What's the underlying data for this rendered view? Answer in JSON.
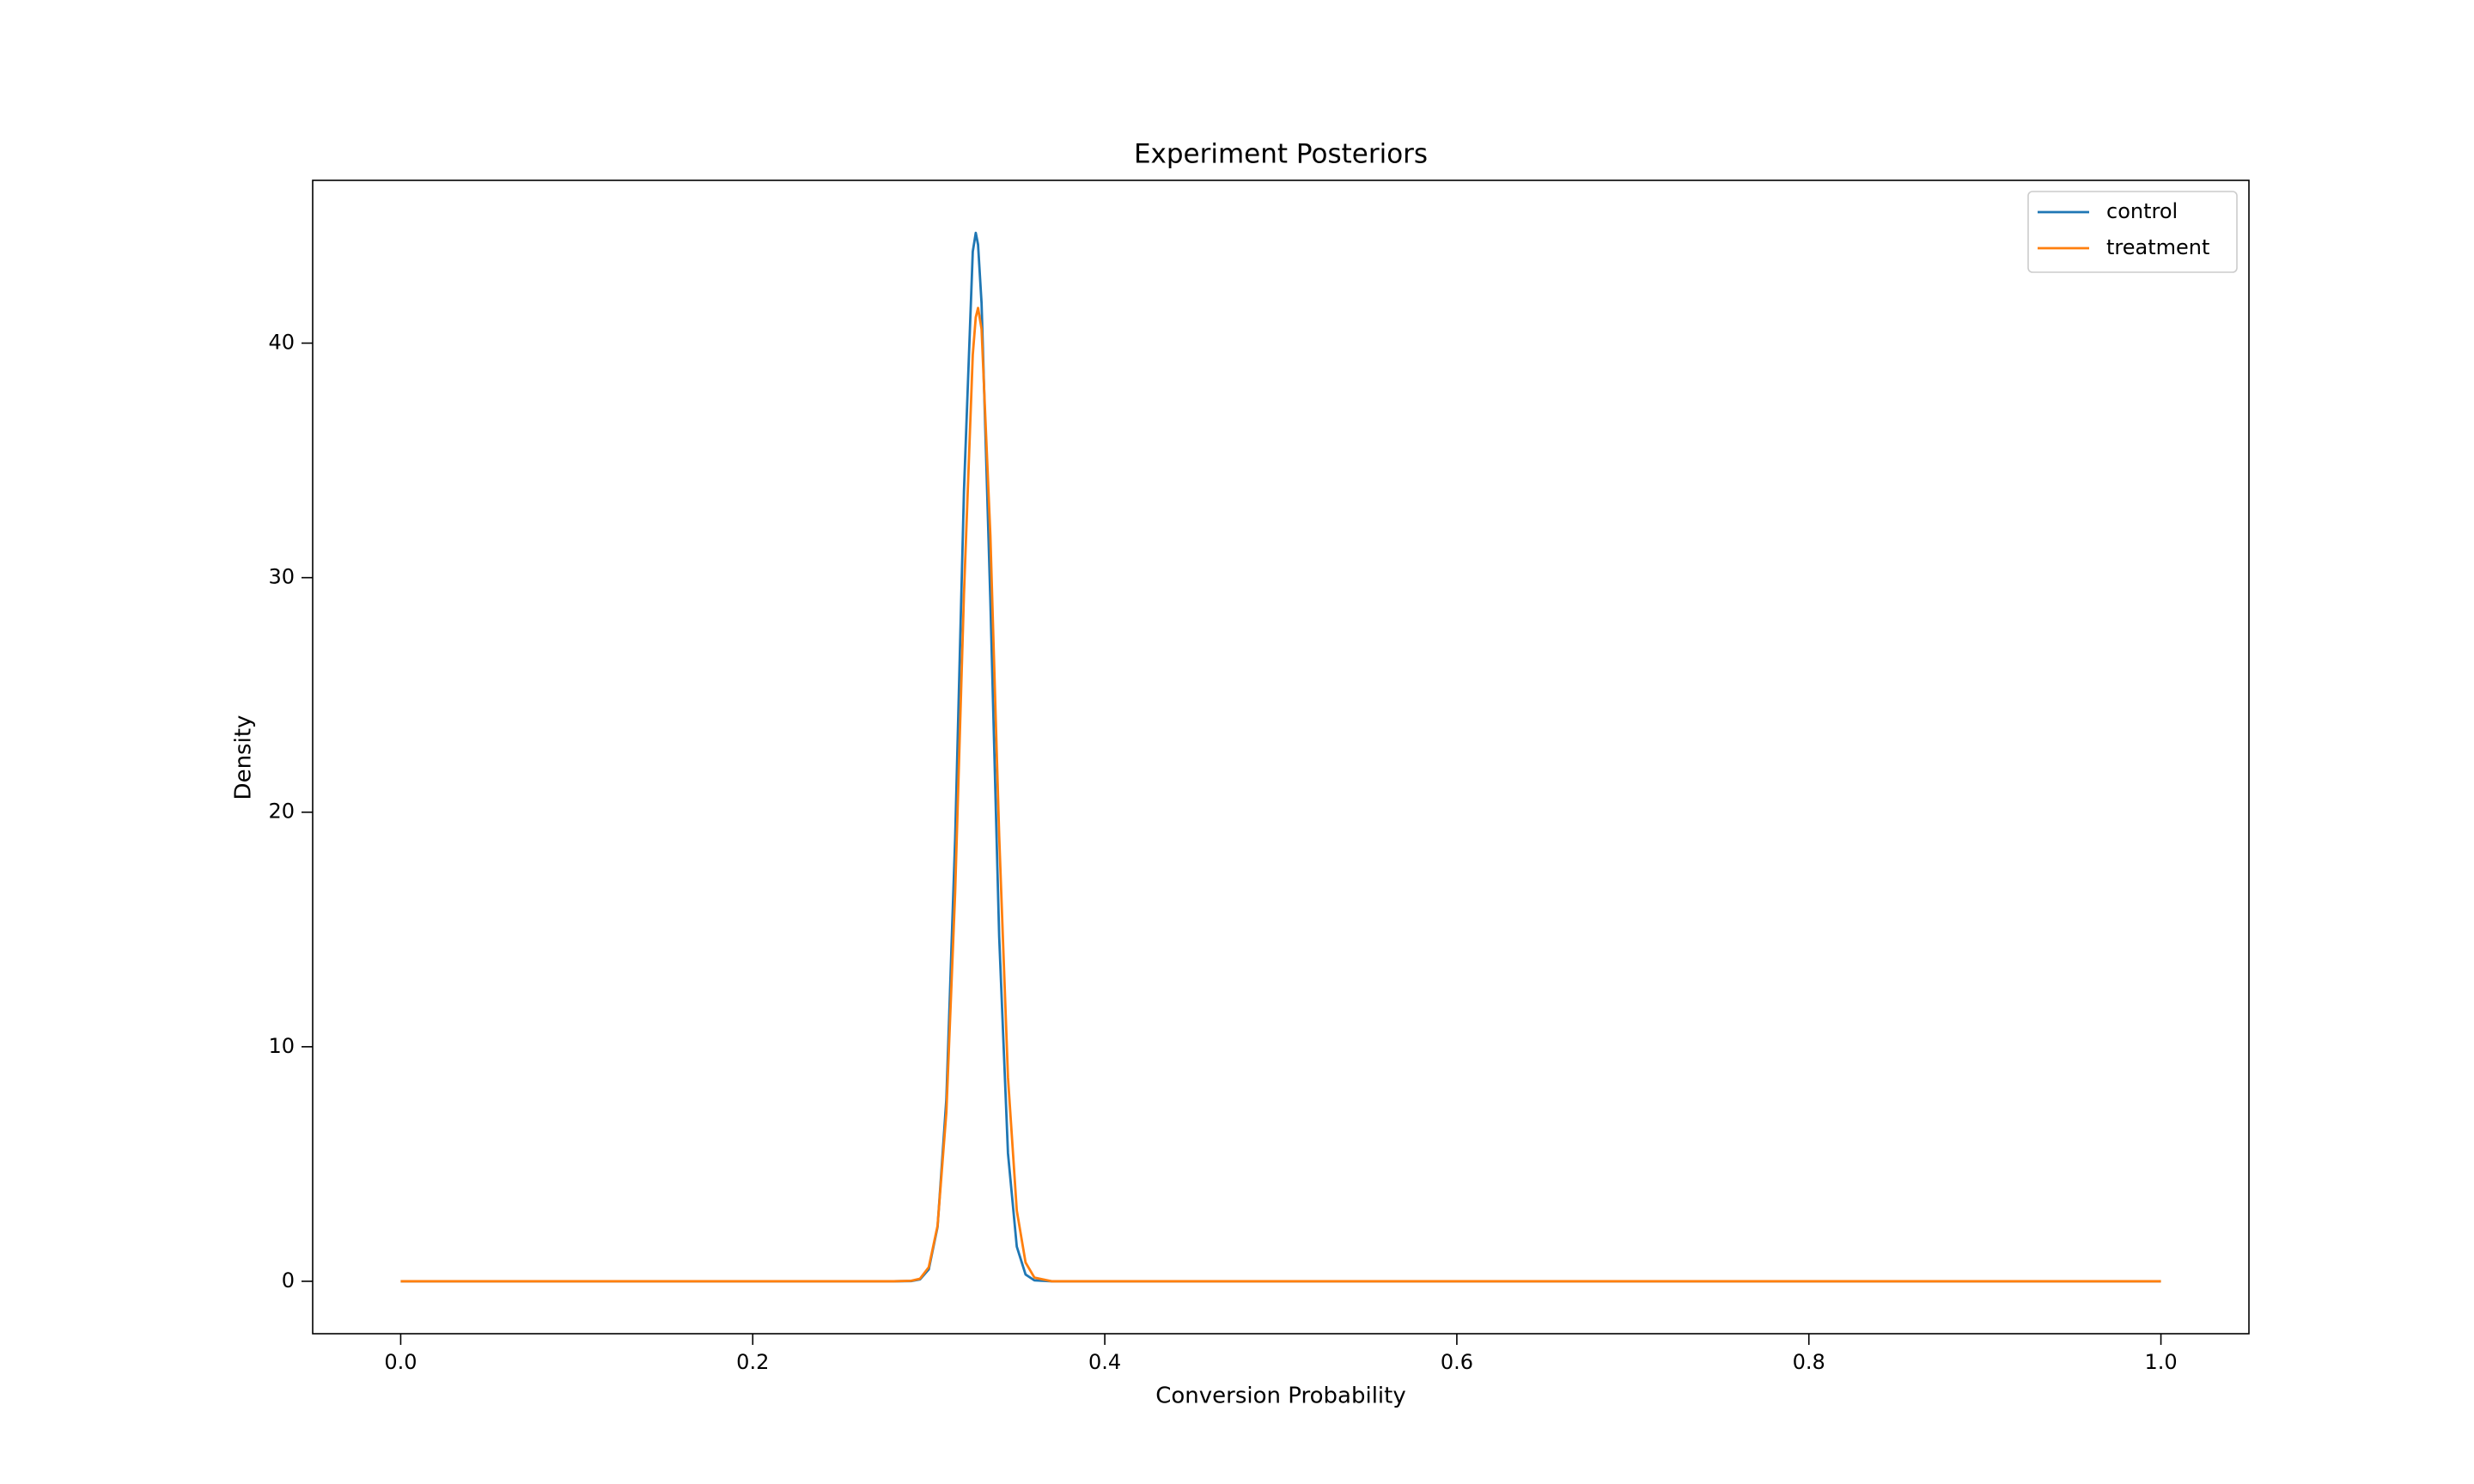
{
  "chart_data": {
    "type": "line",
    "title": "Experiment Posteriors",
    "x_label": "Conversion Probability",
    "y_label": "Density",
    "x": [
      0,
      0.1,
      0.2,
      0.28,
      0.29,
      0.295,
      0.3,
      0.305,
      0.31,
      0.315,
      0.32,
      0.325,
      0.3267,
      0.328,
      0.33,
      0.335,
      0.34,
      0.345,
      0.35,
      0.355,
      0.36,
      0.37,
      0.4,
      0.6,
      0.8,
      1.0
    ],
    "series": [
      {
        "name": "control",
        "color": "#1f77b4",
        "values": [
          0,
          0,
          0,
          0,
          0.01,
          0.08,
          0.51,
          2.32,
          7.77,
          18.9,
          33.7,
          43.9,
          44.7,
          44.2,
          41.7,
          29.0,
          14.7,
          5.46,
          1.48,
          0.29,
          0.04,
          0,
          0,
          0,
          0,
          0
        ]
      },
      {
        "name": "treatment",
        "color": "#ff7f0e",
        "values": [
          0,
          0,
          0,
          0,
          0.02,
          0.11,
          0.6,
          2.37,
          7.2,
          16.6,
          29.3,
          39.5,
          41.1,
          41.5,
          40.6,
          31.8,
          19.0,
          8.7,
          3.02,
          0.8,
          0.16,
          0,
          0,
          0,
          0,
          0
        ]
      }
    ],
    "xlim": [
      -0.05,
      1.05
    ],
    "ylim": [
      -2.235,
      46.94
    ],
    "xticks": [
      {
        "value": 0,
        "label": "0.0"
      },
      0.2,
      0.4,
      0.6,
      0.8,
      {
        "value": 1,
        "label": "1.0"
      }
    ],
    "yticks": [
      0,
      10,
      20,
      30,
      40
    ],
    "grid": false,
    "legend": "upper right"
  }
}
